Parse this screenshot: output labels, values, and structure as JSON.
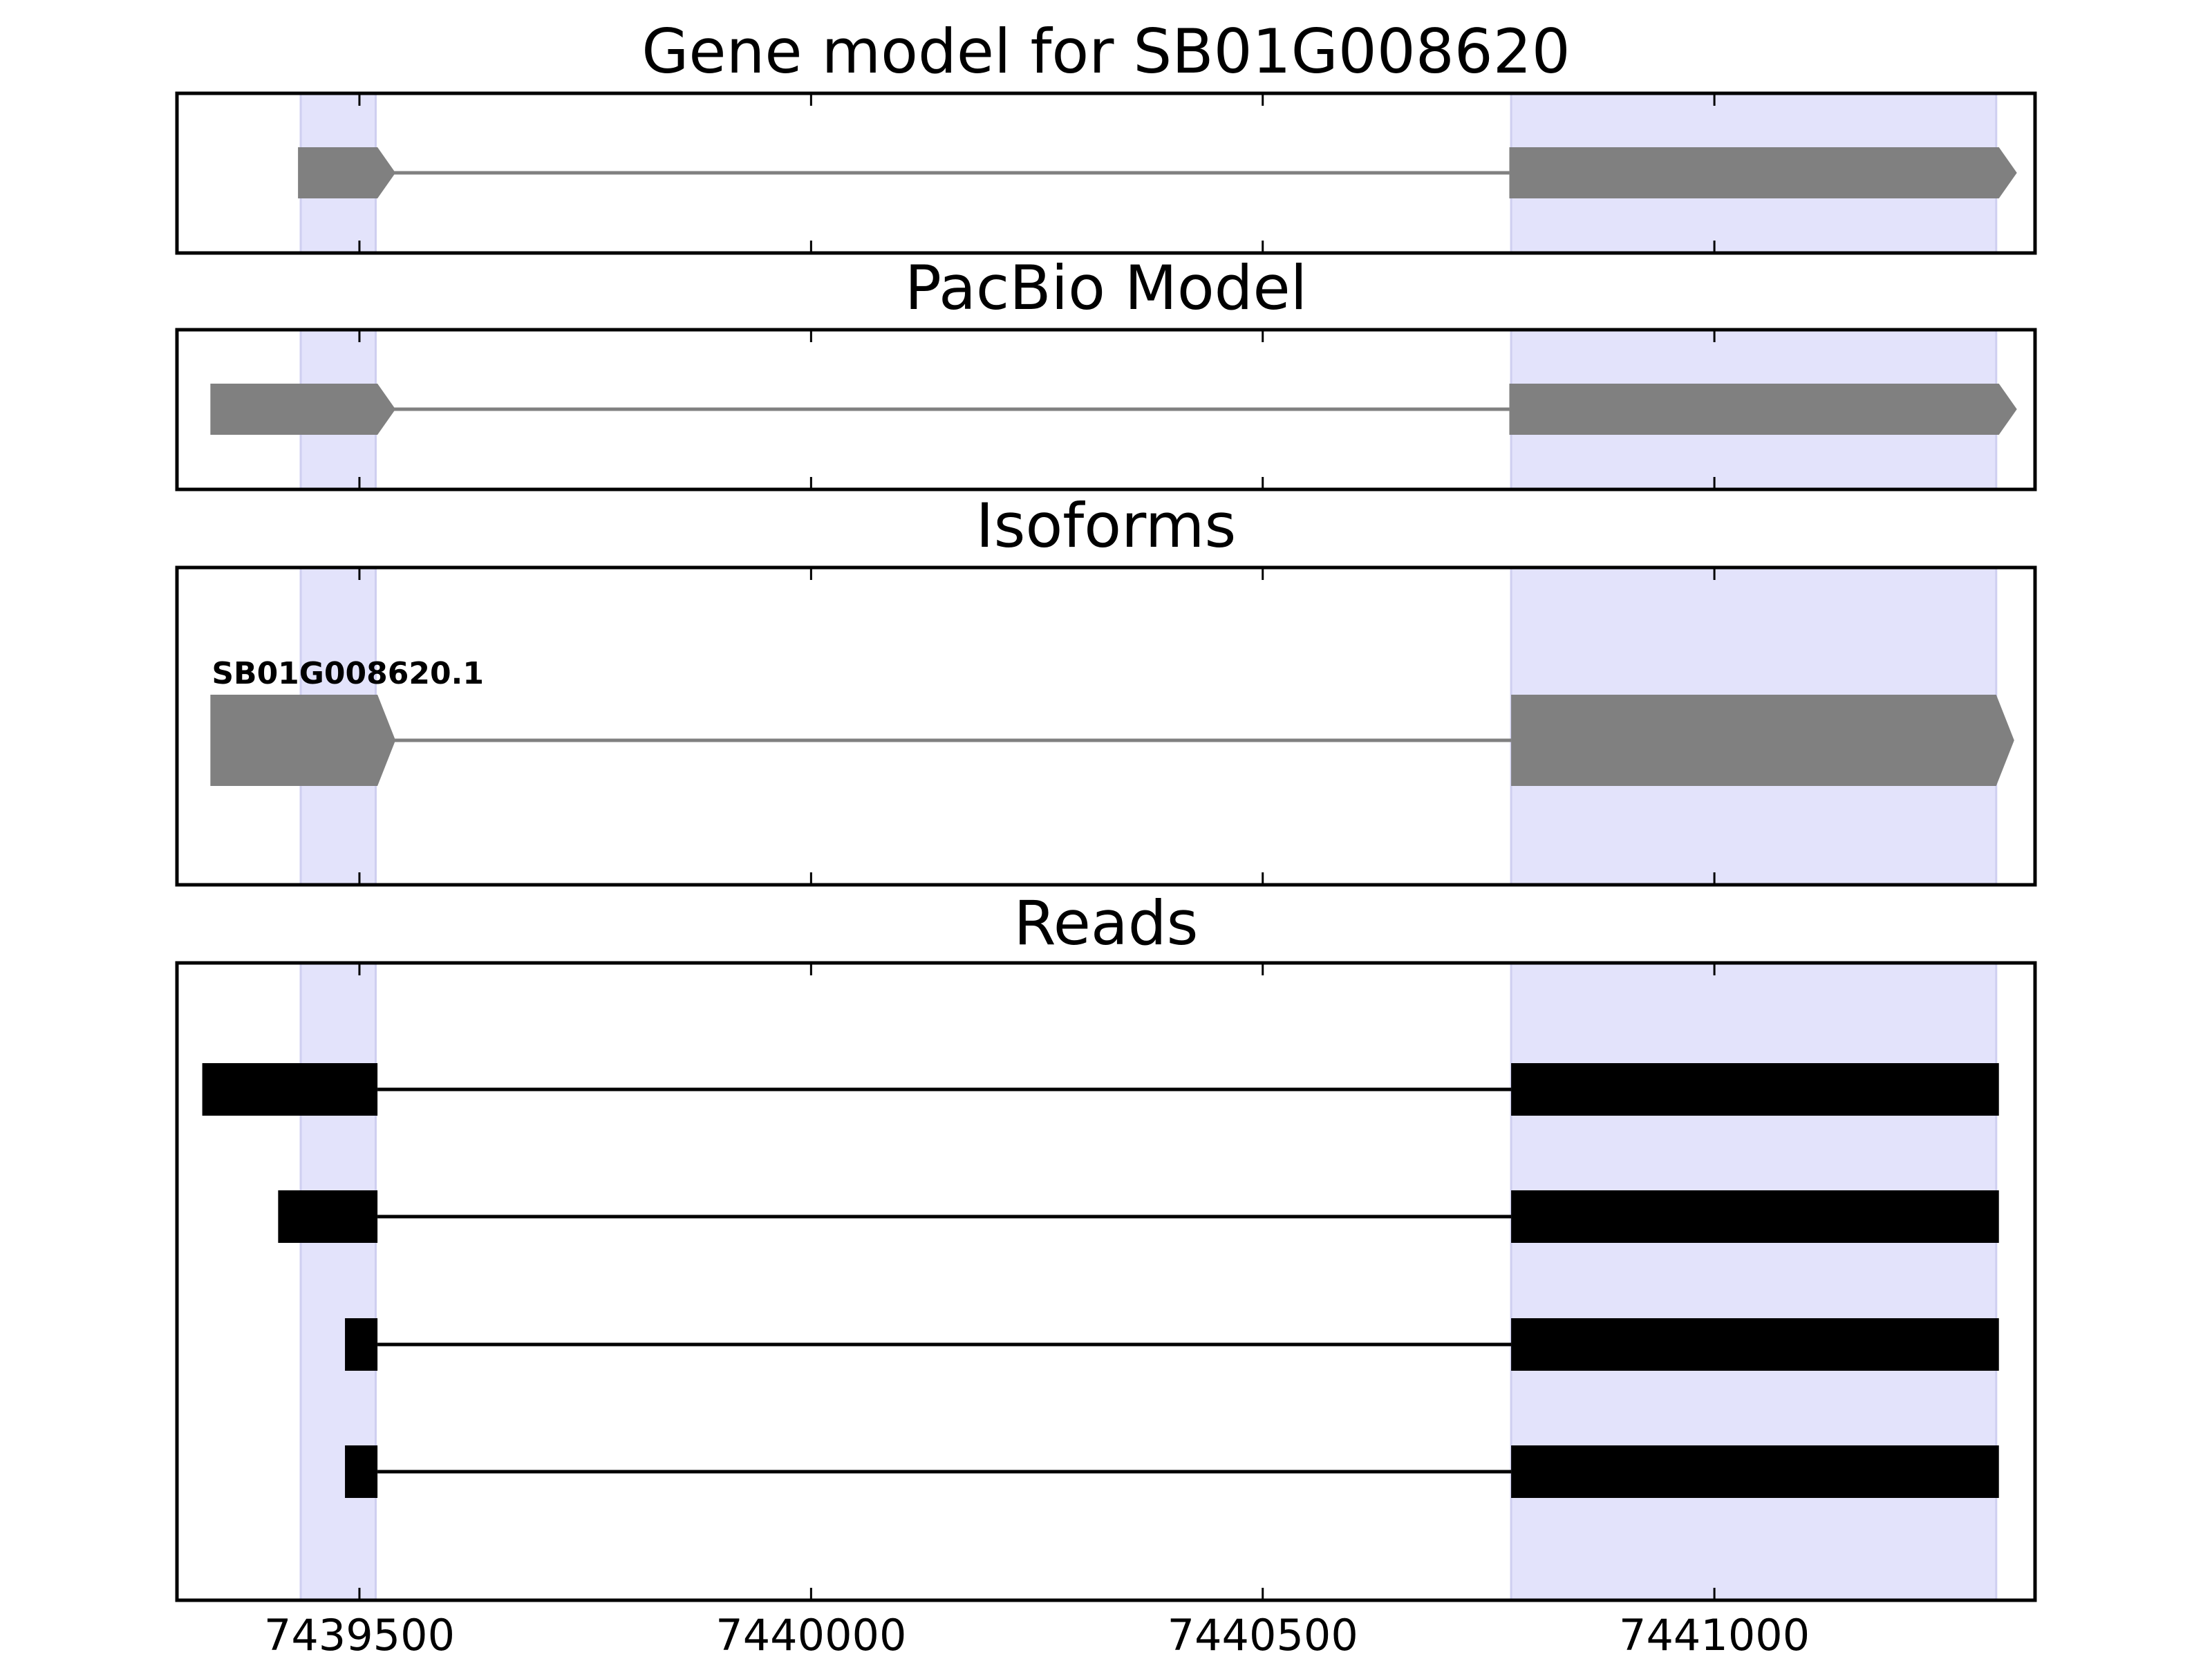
{
  "chart_data": {
    "type": "gene-structure",
    "x_range": [
      7439298,
      7441355
    ],
    "x_ticks": [
      7439500,
      7440000,
      7440500,
      7441000
    ],
    "x_tick_labels": [
      "7439500",
      "7440000",
      "7440500",
      "7441000"
    ],
    "highlight_color": "#e3e3fb",
    "highlight_regions": [
      [
        7439435,
        7439518
      ],
      [
        7440775,
        7441312
      ]
    ],
    "panels": [
      {
        "id": "gene-model",
        "title": "Gene model for SB01G008620",
        "color": "#808080",
        "features": [
          {
            "label": "",
            "exons": [
              [
                7439432,
                7439520
              ],
              [
                7440773,
                7441315
              ]
            ],
            "strand": "+"
          }
        ]
      },
      {
        "id": "pacbio-model",
        "title": "PacBio Model",
        "color": "#808080",
        "features": [
          {
            "label": "",
            "exons": [
              [
                7439335,
                7439520
              ],
              [
                7440773,
                7441315
              ]
            ],
            "strand": "+"
          }
        ]
      },
      {
        "id": "isoforms",
        "title": "Isoforms",
        "color": "#808080",
        "features": [
          {
            "label": "SB01G008620.1",
            "exons": [
              [
                7439335,
                7439520
              ],
              [
                7440775,
                7441312
              ]
            ],
            "strand": "+"
          }
        ]
      },
      {
        "id": "reads",
        "title": "Reads",
        "color": "#000000",
        "features": [
          {
            "label": "",
            "exons": [
              [
                7439326,
                7439520
              ],
              [
                7440775,
                7441315
              ]
            ],
            "strand": ""
          },
          {
            "label": "",
            "exons": [
              [
                7439410,
                7439520
              ],
              [
                7440775,
                7441315
              ]
            ],
            "strand": ""
          },
          {
            "label": "",
            "exons": [
              [
                7439484,
                7439520
              ],
              [
                7440775,
                7441315
              ]
            ],
            "strand": ""
          },
          {
            "label": "",
            "exons": [
              [
                7439484,
                7439520
              ],
              [
                7440775,
                7441315
              ]
            ],
            "strand": ""
          }
        ]
      }
    ]
  }
}
